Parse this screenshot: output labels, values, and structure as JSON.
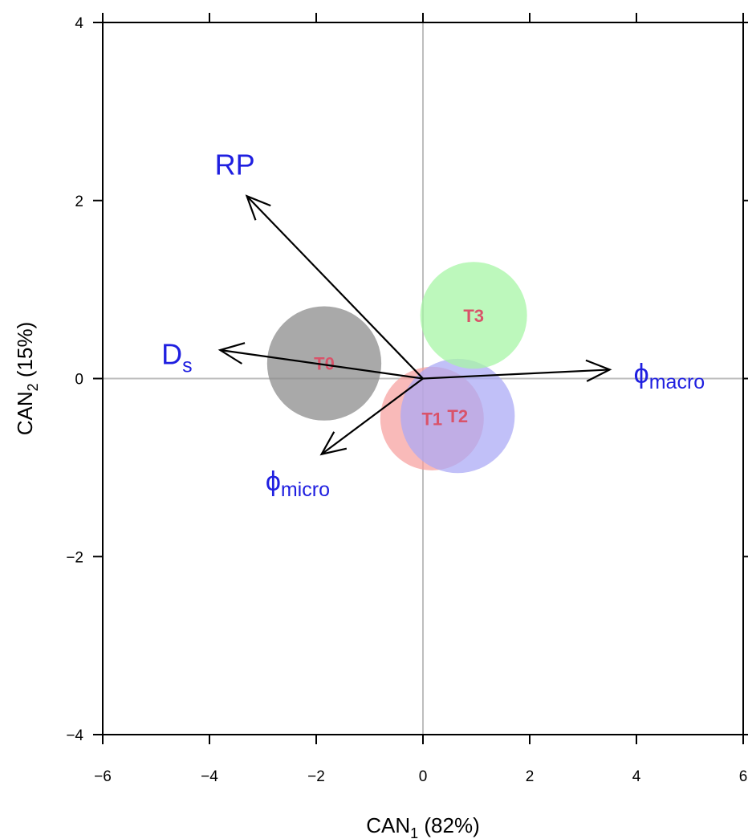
{
  "chart_data": {
    "type": "scatter",
    "xlabel": {
      "base": "CAN",
      "sub": "1",
      "rest": " (82%)"
    },
    "ylabel": {
      "base": "CAN",
      "sub": "2",
      "rest": " (15%)"
    },
    "xlim": [
      -6,
      6
    ],
    "ylim": [
      -4,
      4
    ],
    "xticks": [
      -6,
      -4,
      -2,
      0,
      2,
      4,
      6
    ],
    "yticks": [
      -4,
      -2,
      0,
      2,
      4
    ],
    "tick_labels_x": [
      "−6",
      "−4",
      "−2",
      "0",
      "2",
      "4",
      "6"
    ],
    "tick_labels_y": [
      "−4",
      "−2",
      "0",
      "2",
      "4"
    ],
    "reference_lines": {
      "x": 0,
      "y": 0,
      "color": "#bdbdbd"
    },
    "grid": false,
    "groups": [
      {
        "label": "T0",
        "x": -1.85,
        "y": 0.17,
        "radius": 1.07,
        "color": "#8c8c8c",
        "opacity": 0.75
      },
      {
        "label": "T1",
        "x": 0.17,
        "y": -0.45,
        "radius": 0.97,
        "color": "#f7a09e",
        "opacity": 0.72
      },
      {
        "label": "T2",
        "x": 0.65,
        "y": -0.42,
        "radius": 1.07,
        "color": "#a9a8f5",
        "opacity": 0.72
      },
      {
        "label": "T3",
        "x": 0.95,
        "y": 0.71,
        "radius": 1.0,
        "color": "#a7f5a5",
        "opacity": 0.75
      }
    ],
    "group_label_color": "#d9536a",
    "vectors": [
      {
        "name": "RP",
        "label_base": "RP",
        "label_sub": "",
        "x": -3.3,
        "y": 2.05,
        "label_x": -3.9,
        "label_y": 2.4
      },
      {
        "name": "Ds",
        "label_base": "D",
        "label_sub": "s",
        "x": -3.8,
        "y": 0.32,
        "label_x": -4.9,
        "label_y": 0.27
      },
      {
        "name": "phi_micro",
        "label_base": "ϕ",
        "label_sub": "micro",
        "x": -1.9,
        "y": -0.85,
        "label_x": -2.95,
        "label_y": -1.15
      },
      {
        "name": "phi_macro",
        "label_base": "ϕ",
        "label_sub": "macro",
        "x": 3.5,
        "y": 0.1,
        "label_x": 3.95,
        "label_y": 0.06
      }
    ],
    "vector_color": "#000000",
    "vector_label_color": "#1f1fe0"
  }
}
